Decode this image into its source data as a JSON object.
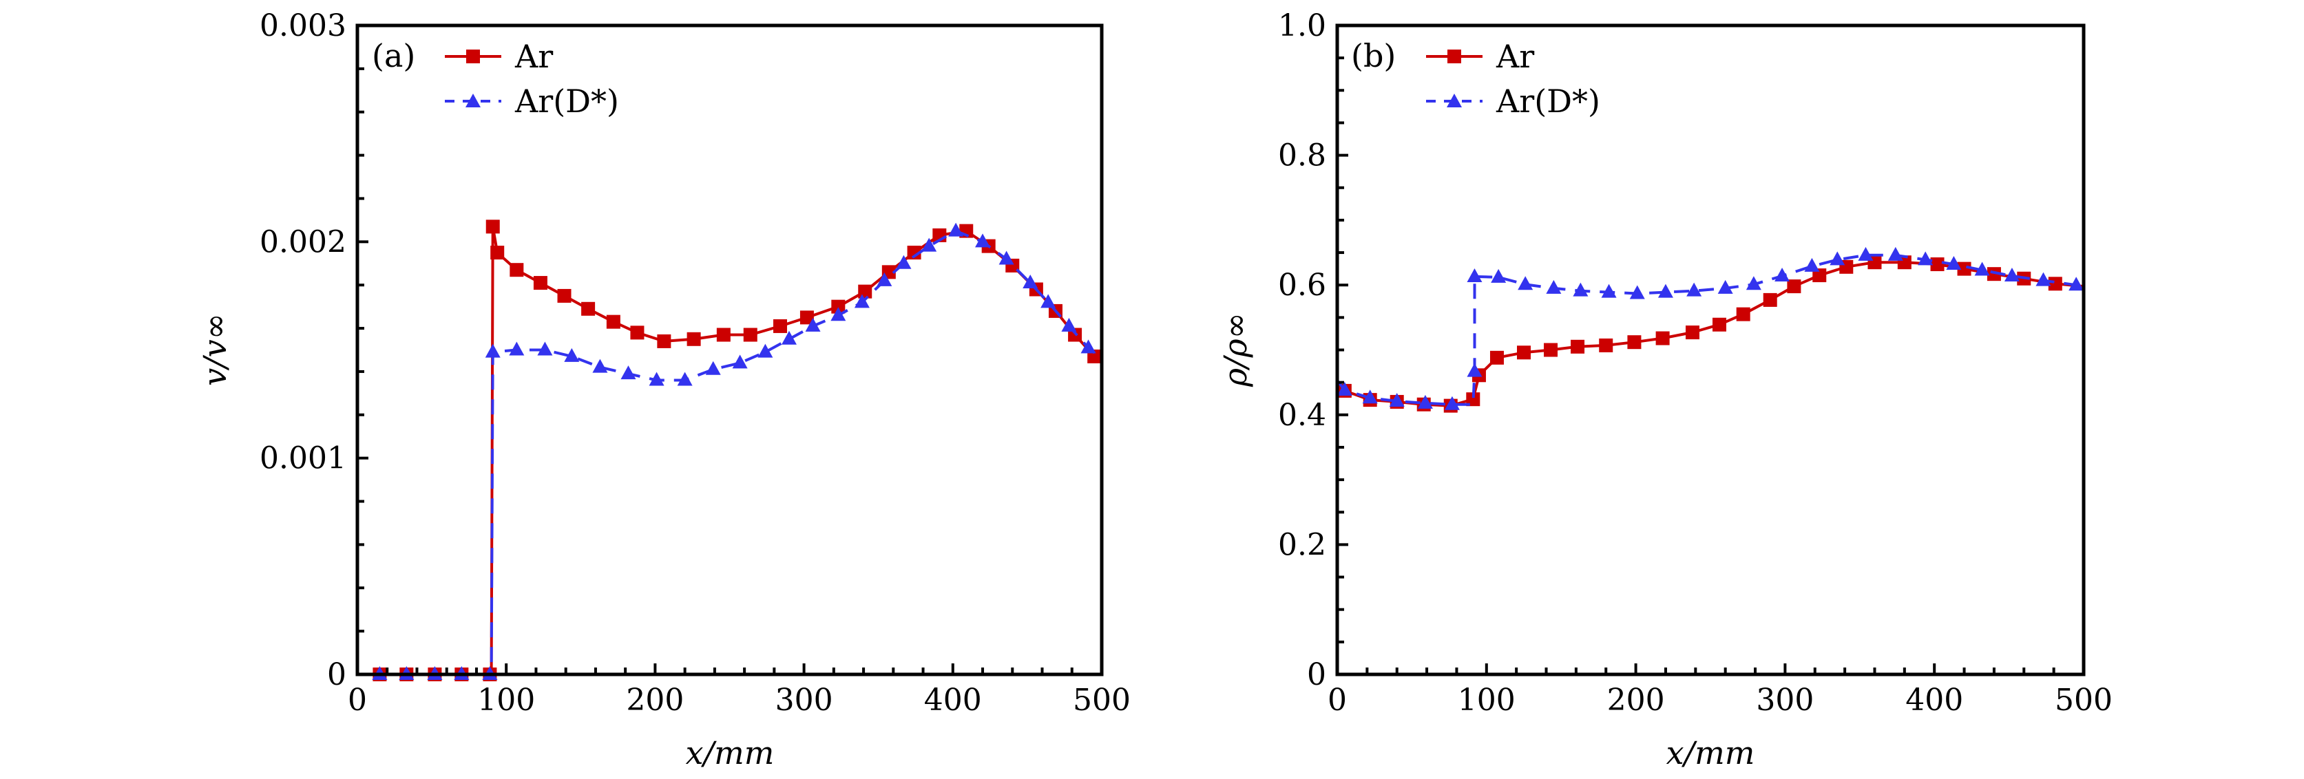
{
  "figure": {
    "panels": [
      "a",
      "b"
    ]
  },
  "chart_data": [
    {
      "type": "line",
      "panel_label": "(a)",
      "title": "",
      "xlabel": "x/mm",
      "ylabel": "v/v∞",
      "xlim": [
        0,
        500
      ],
      "ylim": [
        0,
        0.003
      ],
      "xticks": [
        0,
        100,
        200,
        300,
        400,
        500
      ],
      "xtick_labels": [
        "0",
        "100",
        "200",
        "300",
        "400",
        "500"
      ],
      "x_minor_step": 20,
      "yticks": [
        0,
        0.001,
        0.002,
        0.003
      ],
      "ytick_labels": [
        "0",
        "0.001",
        "0.002",
        "0.003"
      ],
      "y_minor_step": 0.0002,
      "grid": false,
      "legend_position": "top-left",
      "series": [
        {
          "name": "Ar",
          "color": "#cc0000",
          "line_style": "solid",
          "marker": "square",
          "x": [
            15,
            33,
            52,
            70,
            89,
            90,
            91,
            94,
            107,
            123,
            139,
            155,
            172,
            188,
            206,
            226,
            246,
            264,
            284,
            302,
            323,
            341,
            357,
            374,
            391,
            409,
            424,
            440,
            456,
            469,
            482,
            495,
            500
          ],
          "y": [
            0,
            0,
            0,
            0,
            0,
            0.0,
            0.00207,
            0.00195,
            0.00187,
            0.00181,
            0.00175,
            0.00169,
            0.00163,
            0.00158,
            0.00154,
            0.00155,
            0.00157,
            0.00157,
            0.00161,
            0.00165,
            0.0017,
            0.00177,
            0.00186,
            0.00195,
            0.00203,
            0.00205,
            0.00198,
            0.00189,
            0.00178,
            0.00168,
            0.00157,
            0.00147,
            0.00146
          ],
          "marker_mask": [
            1,
            1,
            1,
            1,
            1,
            0,
            1,
            1,
            1,
            1,
            1,
            1,
            1,
            1,
            1,
            1,
            1,
            1,
            1,
            1,
            1,
            1,
            1,
            1,
            1,
            1,
            1,
            1,
            1,
            1,
            1,
            1,
            0
          ]
        },
        {
          "name": "Ar(D*)",
          "color": "#3333ee",
          "line_style": "dashed",
          "marker": "triangle",
          "x": [
            15,
            33,
            52,
            70,
            89,
            90,
            91,
            107,
            126,
            144,
            163,
            182,
            201,
            220,
            239,
            257,
            274,
            290,
            306,
            323,
            339,
            354,
            367,
            384,
            402,
            420,
            436,
            452,
            464,
            478,
            491,
            500
          ],
          "y": [
            0,
            0,
            0,
            0,
            0,
            0.0,
            0.00149,
            0.0015,
            0.0015,
            0.00147,
            0.00142,
            0.00139,
            0.00136,
            0.00136,
            0.00141,
            0.00144,
            0.00149,
            0.00155,
            0.00161,
            0.00166,
            0.00172,
            0.00182,
            0.0019,
            0.00198,
            0.00205,
            0.002,
            0.00192,
            0.00181,
            0.00172,
            0.00161,
            0.00151,
            0.00146
          ],
          "marker_mask": [
            1,
            1,
            1,
            1,
            1,
            0,
            1,
            1,
            1,
            1,
            1,
            1,
            1,
            1,
            1,
            1,
            1,
            1,
            1,
            1,
            1,
            1,
            1,
            1,
            1,
            1,
            1,
            1,
            1,
            1,
            1,
            0
          ]
        }
      ]
    },
    {
      "type": "line",
      "panel_label": "(b)",
      "title": "",
      "xlabel": "x/mm",
      "ylabel": "ρ/ρ∞",
      "xlim": [
        0,
        500
      ],
      "ylim": [
        0,
        1.0
      ],
      "xticks": [
        0,
        100,
        200,
        300,
        400,
        500
      ],
      "xtick_labels": [
        "0",
        "100",
        "200",
        "300",
        "400",
        "500"
      ],
      "x_minor_step": 20,
      "yticks": [
        0,
        0.2,
        0.4,
        0.6,
        0.8,
        1.0
      ],
      "ytick_labels": [
        "0",
        "0.2",
        "0.4",
        "0.6",
        "0.8",
        "1.0"
      ],
      "y_minor_step": 0.05,
      "grid": false,
      "legend_position": "top-left",
      "series": [
        {
          "name": "Ar",
          "color": "#cc0000",
          "line_style": "solid",
          "marker": "square",
          "x": [
            0,
            5,
            22,
            40,
            58,
            76,
            91,
            95,
            107,
            125,
            143,
            161,
            180,
            199,
            218,
            238,
            256,
            272,
            290,
            306,
            323,
            341,
            360,
            380,
            402,
            420,
            440,
            460,
            481,
            500
          ],
          "y": [
            0.445,
            0.437,
            0.423,
            0.42,
            0.416,
            0.414,
            0.424,
            0.461,
            0.488,
            0.496,
            0.5,
            0.505,
            0.507,
            0.512,
            0.518,
            0.527,
            0.539,
            0.555,
            0.577,
            0.598,
            0.615,
            0.628,
            0.635,
            0.635,
            0.632,
            0.625,
            0.617,
            0.61,
            0.602,
            0.598
          ],
          "marker_mask": [
            0,
            1,
            1,
            1,
            1,
            1,
            1,
            1,
            1,
            1,
            1,
            1,
            1,
            1,
            1,
            1,
            1,
            1,
            1,
            1,
            1,
            1,
            1,
            1,
            1,
            1,
            1,
            1,
            1,
            0
          ]
        },
        {
          "name": "Ar(D*)",
          "color": "#3333ee",
          "line_style": "dashed",
          "marker": "triangle",
          "x": [
            0,
            5,
            22,
            40,
            59,
            77,
            91,
            92,
            92,
            108,
            126,
            145,
            163,
            182,
            201,
            220,
            239,
            260,
            279,
            298,
            318,
            335,
            354,
            374,
            394,
            413,
            432,
            452,
            473,
            495,
            500
          ],
          "y": [
            0.453,
            0.438,
            0.426,
            0.421,
            0.418,
            0.416,
            0.416,
            0.467,
            0.613,
            0.612,
            0.601,
            0.595,
            0.591,
            0.589,
            0.587,
            0.589,
            0.591,
            0.595,
            0.601,
            0.614,
            0.629,
            0.639,
            0.646,
            0.646,
            0.639,
            0.632,
            0.623,
            0.614,
            0.607,
            0.6,
            0.598
          ],
          "marker_mask": [
            0,
            1,
            1,
            1,
            1,
            1,
            0,
            1,
            1,
            1,
            1,
            1,
            1,
            1,
            1,
            1,
            1,
            1,
            1,
            1,
            1,
            1,
            1,
            1,
            1,
            1,
            1,
            1,
            1,
            1,
            0
          ]
        }
      ]
    }
  ]
}
